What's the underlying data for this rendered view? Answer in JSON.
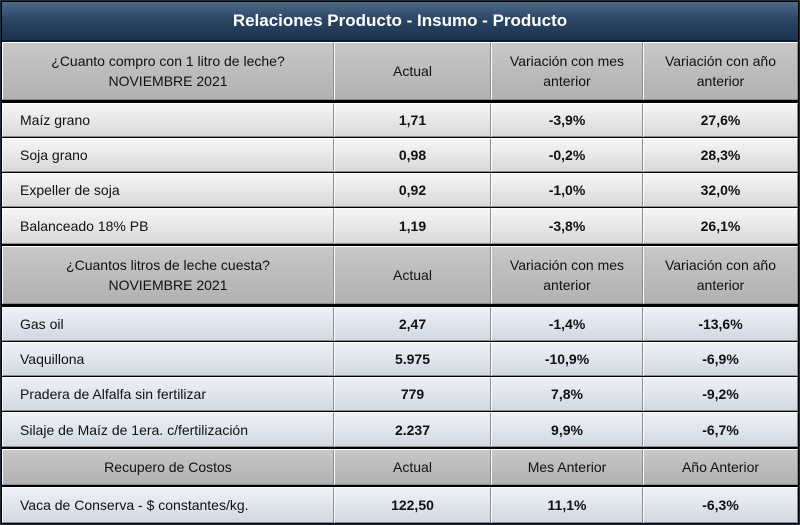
{
  "title": "Relaciones Producto - Insumo - Producto",
  "section1": {
    "header": [
      "¿Cuanto compro con 1 litro de leche?",
      "NOVIEMBRE 2021"
    ],
    "col_actual": "Actual",
    "col_mes": [
      "Variación con mes",
      "anterior"
    ],
    "col_anio": [
      "Variación con año",
      "anterior"
    ],
    "rows": [
      {
        "label": "Maíz grano",
        "actual": "1,71",
        "mes": "-3,9%",
        "anio": "27,6%"
      },
      {
        "label": "Soja grano",
        "actual": "0,98",
        "mes": "-0,2%",
        "anio": "28,3%"
      },
      {
        "label": "Expeller de soja",
        "actual": "0,92",
        "mes": "-1,0%",
        "anio": "32,0%"
      },
      {
        "label": "Balanceado 18% PB",
        "actual": "1,19",
        "mes": "-3,8%",
        "anio": "26,1%"
      }
    ]
  },
  "section2": {
    "header": [
      "¿Cuantos litros de leche cuesta?",
      "NOVIEMBRE 2021"
    ],
    "col_actual": "Actual",
    "col_mes": [
      "Variación con mes",
      "anterior"
    ],
    "col_anio": [
      "Variación con año",
      "anterior"
    ],
    "rows": [
      {
        "label": "Gas oil",
        "actual": "2,47",
        "mes": "-1,4%",
        "anio": "-13,6%"
      },
      {
        "label": "Vaquillona",
        "actual": "5.975",
        "mes": "-10,9%",
        "anio": "-6,9%"
      },
      {
        "label": "Pradera de Alfalfa sin fertilizar",
        "actual": "779",
        "mes": "7,8%",
        "anio": "-9,2%"
      },
      {
        "label": "Silaje de Maíz de 1era. c/fertilización",
        "actual": "2.237",
        "mes": "9,9%",
        "anio": "-6,7%"
      }
    ]
  },
  "section3": {
    "header": "Recupero de Costos",
    "col_actual": "Actual",
    "col_mes": "Mes Anterior",
    "col_anio": "Año Anterior",
    "rows": [
      {
        "label": "Vaca de Conserva - $ constantes/kg.",
        "actual": "122,50",
        "mes": "11,1%",
        "anio": "-6,3%"
      }
    ]
  }
}
